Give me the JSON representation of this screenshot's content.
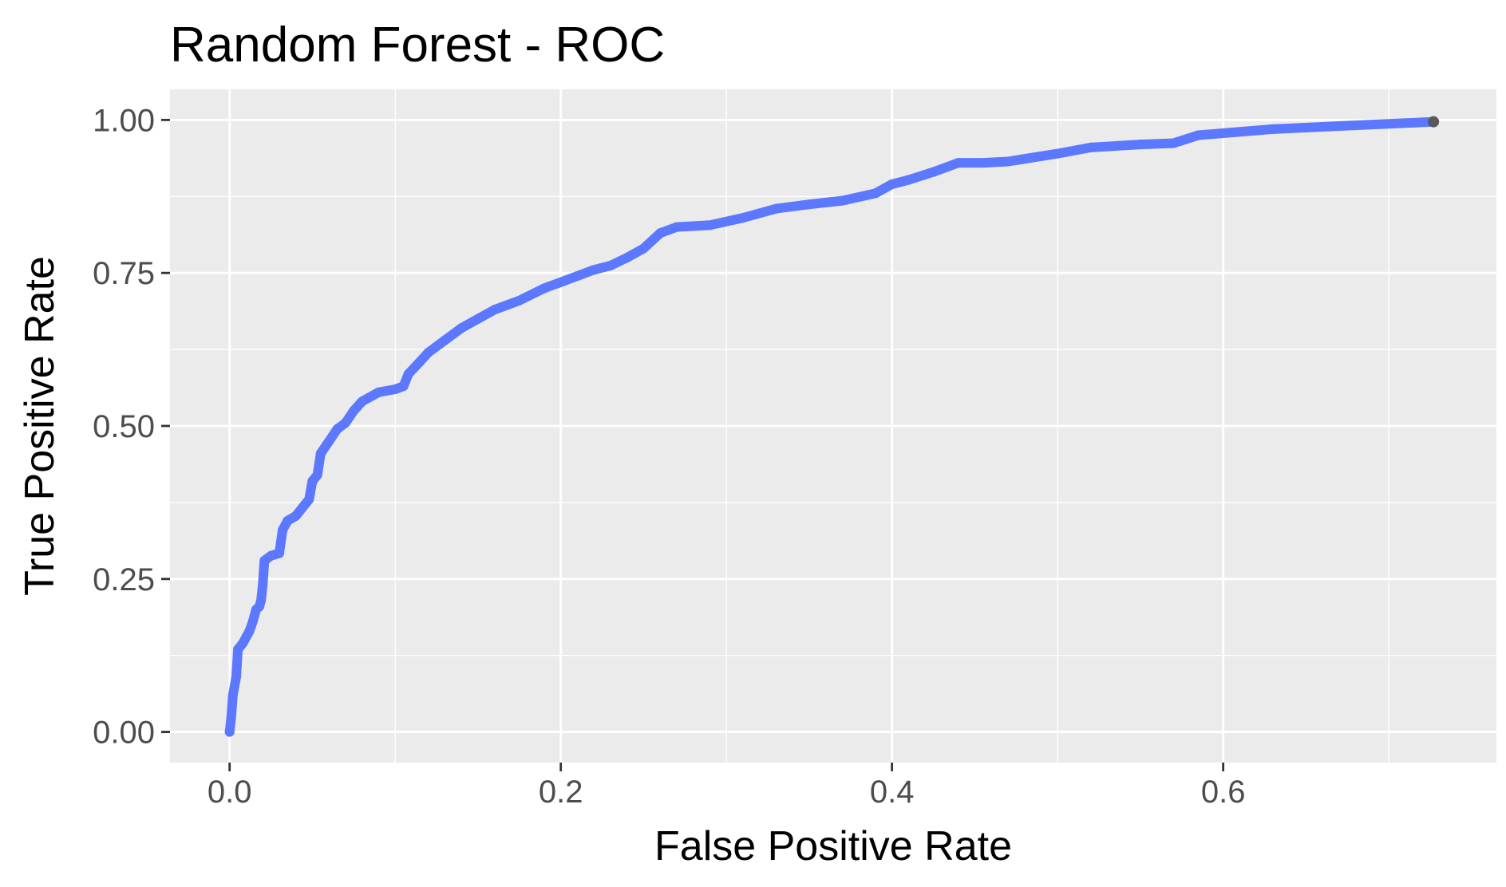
{
  "chart_data": {
    "type": "line",
    "title": "Random Forest - ROC",
    "xlabel": "False Positive Rate",
    "ylabel": "True Positive Rate",
    "xlim": [
      -0.036,
      0.765
    ],
    "ylim": [
      -0.05,
      1.05
    ],
    "x_ticks": [
      0.0,
      0.2,
      0.4,
      0.6
    ],
    "x_tick_labels": [
      "0.0",
      "0.2",
      "0.4",
      "0.6"
    ],
    "y_ticks": [
      0.0,
      0.25,
      0.5,
      0.75,
      1.0
    ],
    "y_tick_labels": [
      "0.00",
      "0.25",
      "0.50",
      "0.75",
      "1.00"
    ],
    "grid": true,
    "legend": "none",
    "colors": {
      "panel_background": "#ebebeb",
      "grid_line": "#ffffff",
      "tick_mark": "#333333",
      "tick_label": "#4d4d4d",
      "series_line": "#5b78ff",
      "end_point": "#595959"
    },
    "series": [
      {
        "values": [
          [
            0.0,
            0.0
          ],
          [
            0.001,
            0.025
          ],
          [
            0.002,
            0.06
          ],
          [
            0.004,
            0.09
          ],
          [
            0.005,
            0.135
          ],
          [
            0.008,
            0.145
          ],
          [
            0.012,
            0.165
          ],
          [
            0.014,
            0.18
          ],
          [
            0.016,
            0.2
          ],
          [
            0.018,
            0.205
          ],
          [
            0.019,
            0.215
          ],
          [
            0.02,
            0.24
          ],
          [
            0.021,
            0.28
          ],
          [
            0.025,
            0.288
          ],
          [
            0.03,
            0.292
          ],
          [
            0.032,
            0.33
          ],
          [
            0.035,
            0.345
          ],
          [
            0.04,
            0.353
          ],
          [
            0.045,
            0.37
          ],
          [
            0.048,
            0.38
          ],
          [
            0.05,
            0.41
          ],
          [
            0.053,
            0.42
          ],
          [
            0.055,
            0.455
          ],
          [
            0.06,
            0.475
          ],
          [
            0.065,
            0.495
          ],
          [
            0.07,
            0.505
          ],
          [
            0.075,
            0.525
          ],
          [
            0.08,
            0.54
          ],
          [
            0.09,
            0.555
          ],
          [
            0.1,
            0.56
          ],
          [
            0.105,
            0.565
          ],
          [
            0.108,
            0.585
          ],
          [
            0.115,
            0.605
          ],
          [
            0.12,
            0.62
          ],
          [
            0.13,
            0.64
          ],
          [
            0.135,
            0.65
          ],
          [
            0.14,
            0.66
          ],
          [
            0.15,
            0.675
          ],
          [
            0.16,
            0.69
          ],
          [
            0.175,
            0.705
          ],
          [
            0.19,
            0.725
          ],
          [
            0.2,
            0.735
          ],
          [
            0.21,
            0.745
          ],
          [
            0.22,
            0.755
          ],
          [
            0.23,
            0.762
          ],
          [
            0.24,
            0.775
          ],
          [
            0.25,
            0.79
          ],
          [
            0.26,
            0.815
          ],
          [
            0.27,
            0.825
          ],
          [
            0.29,
            0.828
          ],
          [
            0.31,
            0.84
          ],
          [
            0.33,
            0.855
          ],
          [
            0.35,
            0.862
          ],
          [
            0.37,
            0.868
          ],
          [
            0.39,
            0.88
          ],
          [
            0.4,
            0.895
          ],
          [
            0.41,
            0.902
          ],
          [
            0.425,
            0.915
          ],
          [
            0.44,
            0.93
          ],
          [
            0.455,
            0.93
          ],
          [
            0.47,
            0.932
          ],
          [
            0.5,
            0.945
          ],
          [
            0.52,
            0.955
          ],
          [
            0.55,
            0.96
          ],
          [
            0.57,
            0.962
          ],
          [
            0.585,
            0.975
          ],
          [
            0.63,
            0.985
          ],
          [
            0.67,
            0.99
          ],
          [
            0.727,
            0.997
          ]
        ]
      }
    ]
  }
}
